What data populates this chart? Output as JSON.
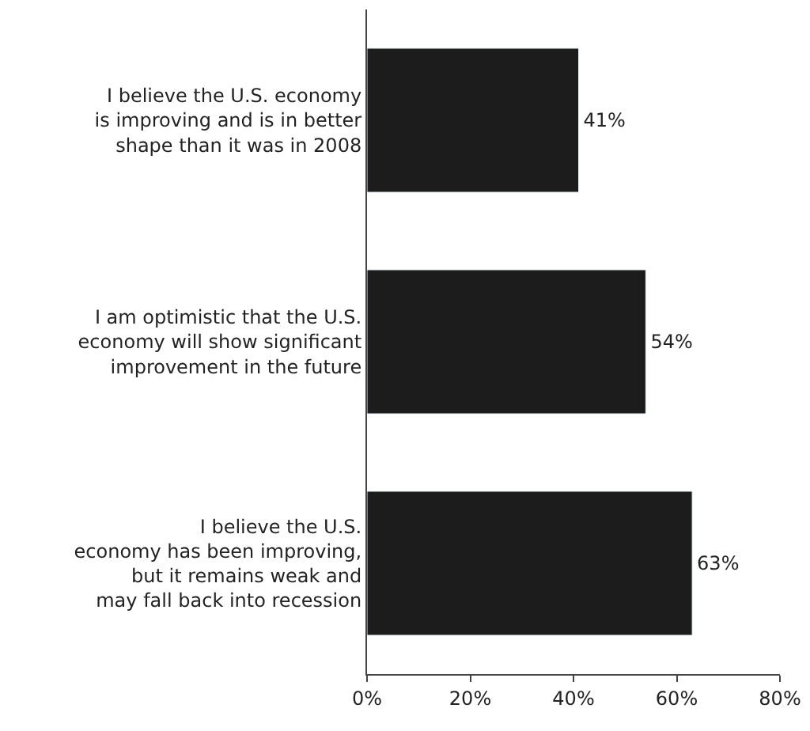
{
  "chart_data": {
    "type": "bar",
    "orientation": "horizontal",
    "categories": [
      "I believe the U.S. economy\nis improving and is in better\nshape than it was in 2008",
      "I am optimistic that the U.S.\neconomy will show significant\nimprovement in the future",
      "I believe the U.S.\neconomy has been improving,\nbut it remains weak and\nmay fall back into recession"
    ],
    "values": [
      41,
      54,
      63
    ],
    "color": "#1c1c1c",
    "value_labels": [
      "41%",
      "54%",
      "63%"
    ],
    "xlim": [
      0,
      80
    ],
    "xticks": [
      {
        "value": 0,
        "label": "0%"
      },
      {
        "value": 20,
        "label": "20%"
      },
      {
        "value": 40,
        "label": "40%"
      },
      {
        "value": 60,
        "label": "60%"
      },
      {
        "value": 80,
        "label": "80%"
      }
    ]
  }
}
